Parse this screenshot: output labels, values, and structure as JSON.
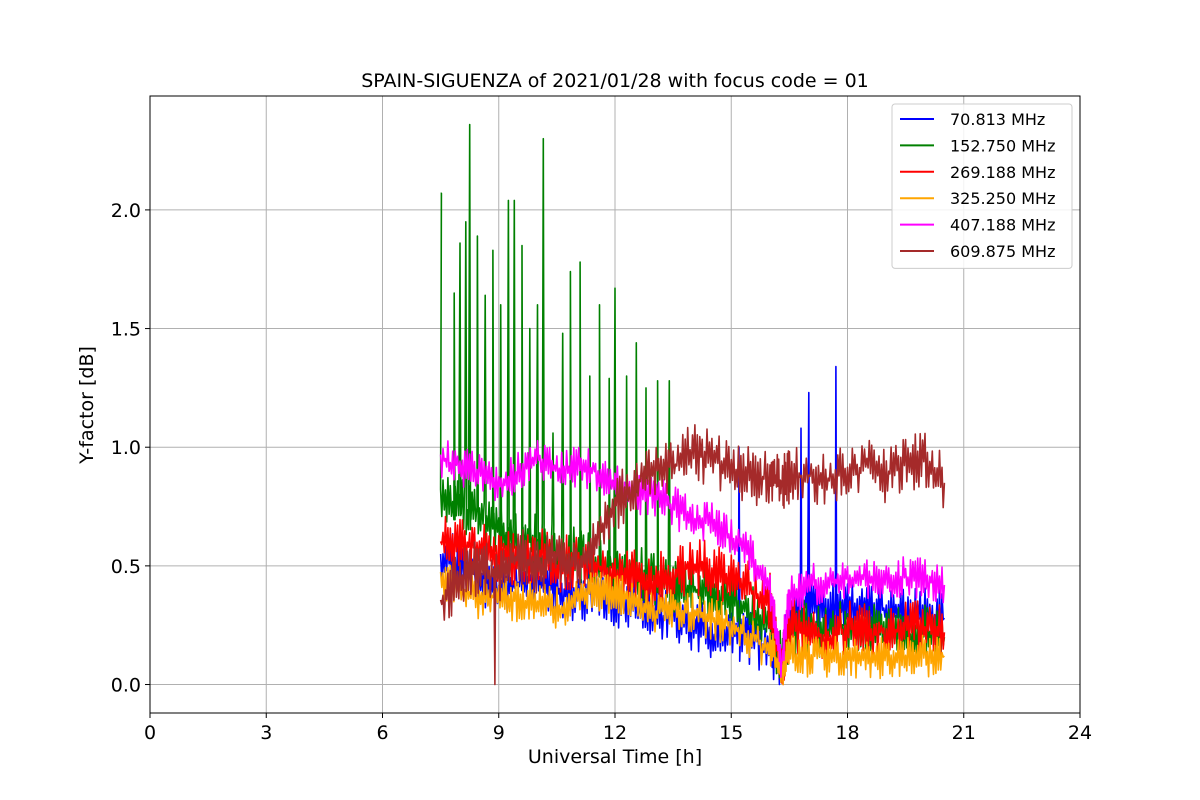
{
  "chart_data": {
    "type": "line",
    "title": "SPAIN-SIGUENZA of 2021/01/28 with focus code = 01",
    "xlabel": "Universal Time [h]",
    "ylabel": "Y-factor [dB]",
    "xlim": [
      0,
      24
    ],
    "ylim": [
      -0.12,
      2.48
    ],
    "xticks": [
      0,
      3,
      6,
      9,
      12,
      15,
      18,
      21,
      24
    ],
    "xtick_labels": [
      "0",
      "3",
      "6",
      "9",
      "12",
      "15",
      "18",
      "21",
      "24"
    ],
    "yticks": [
      0.0,
      0.5,
      1.0,
      1.5,
      2.0
    ],
    "ytick_labels": [
      "0.0",
      "0.5",
      "1.0",
      "1.5",
      "2.0"
    ],
    "grid": true,
    "legend_position": "top-right",
    "series": [
      {
        "name": " 70.813 MHz",
        "color": "#0000ff",
        "x": [
          7.5,
          8.0,
          8.5,
          9.0,
          9.5,
          10.0,
          10.5,
          11.0,
          11.5,
          12.0,
          12.5,
          13.0,
          13.5,
          14.0,
          14.5,
          15.0,
          15.5,
          16.0,
          16.3,
          16.5,
          17.0,
          17.5,
          18.0,
          18.5,
          19.0,
          19.5,
          20.0,
          20.5
        ],
        "y": [
          0.55,
          0.5,
          0.45,
          0.4,
          0.42,
          0.45,
          0.4,
          0.38,
          0.4,
          0.35,
          0.35,
          0.3,
          0.28,
          0.25,
          0.2,
          0.22,
          0.2,
          0.15,
          0.05,
          0.3,
          0.35,
          0.32,
          0.33,
          0.3,
          0.32,
          0.3,
          0.3,
          0.28
        ],
        "spikes": [
          {
            "x": 16.8,
            "y": 1.08
          },
          {
            "x": 17.7,
            "y": 1.34
          },
          {
            "x": 17.0,
            "y": 1.23
          },
          {
            "x": 15.2,
            "y": 1.0
          }
        ]
      },
      {
        "name": "152.750 MHz",
        "color": "#008000",
        "x": [
          7.5,
          8.0,
          8.5,
          9.0,
          9.5,
          10.0,
          10.5,
          11.0,
          11.5,
          12.0,
          12.5,
          13.0,
          13.5,
          14.0,
          14.5,
          15.0,
          15.5,
          16.0,
          16.3,
          16.5,
          17.0,
          17.5,
          18.0,
          18.5,
          19.0,
          19.5,
          20.0,
          20.5
        ],
        "y": [
          0.8,
          0.75,
          0.7,
          0.65,
          0.6,
          0.6,
          0.55,
          0.55,
          0.5,
          0.5,
          0.48,
          0.45,
          0.42,
          0.4,
          0.38,
          0.35,
          0.3,
          0.25,
          0.1,
          0.22,
          0.25,
          0.22,
          0.24,
          0.22,
          0.22,
          0.2,
          0.22,
          0.2
        ],
        "spikes": [
          {
            "x": 7.5,
            "y": 2.07
          },
          {
            "x": 7.85,
            "y": 1.65
          },
          {
            "x": 8.0,
            "y": 1.86
          },
          {
            "x": 8.15,
            "y": 1.95
          },
          {
            "x": 8.25,
            "y": 2.36
          },
          {
            "x": 8.45,
            "y": 1.89
          },
          {
            "x": 8.65,
            "y": 1.64
          },
          {
            "x": 8.85,
            "y": 1.83
          },
          {
            "x": 9.05,
            "y": 1.6
          },
          {
            "x": 9.25,
            "y": 2.04
          },
          {
            "x": 9.4,
            "y": 2.04
          },
          {
            "x": 9.6,
            "y": 1.85
          },
          {
            "x": 9.8,
            "y": 1.5
          },
          {
            "x": 10.0,
            "y": 1.6
          },
          {
            "x": 10.15,
            "y": 2.3
          },
          {
            "x": 10.4,
            "y": 1.06
          },
          {
            "x": 10.65,
            "y": 1.48
          },
          {
            "x": 10.85,
            "y": 1.74
          },
          {
            "x": 11.1,
            "y": 1.78
          },
          {
            "x": 11.35,
            "y": 1.3
          },
          {
            "x": 11.6,
            "y": 1.6
          },
          {
            "x": 11.85,
            "y": 1.29
          },
          {
            "x": 12.0,
            "y": 1.67
          },
          {
            "x": 12.3,
            "y": 1.3
          },
          {
            "x": 12.55,
            "y": 1.44
          },
          {
            "x": 12.8,
            "y": 1.25
          },
          {
            "x": 13.1,
            "y": 1.28
          },
          {
            "x": 13.4,
            "y": 1.28
          }
        ]
      },
      {
        "name": "269.188 MHz",
        "color": "#ff0000",
        "x": [
          7.5,
          8.0,
          8.5,
          9.0,
          9.5,
          10.0,
          10.5,
          11.0,
          11.5,
          12.0,
          12.5,
          13.0,
          13.5,
          14.0,
          14.5,
          15.0,
          15.5,
          16.0,
          16.3,
          16.5,
          17.0,
          17.5,
          18.0,
          18.5,
          19.0,
          19.5,
          20.0,
          20.5
        ],
        "y": [
          0.6,
          0.58,
          0.6,
          0.55,
          0.52,
          0.55,
          0.5,
          0.52,
          0.5,
          0.45,
          0.48,
          0.42,
          0.48,
          0.5,
          0.48,
          0.45,
          0.4,
          0.35,
          0.05,
          0.25,
          0.22,
          0.2,
          0.24,
          0.22,
          0.22,
          0.24,
          0.24,
          0.22
        ],
        "spikes": []
      },
      {
        "name": "325.250 MHz",
        "color": "#ffa500",
        "x": [
          7.5,
          8.0,
          8.5,
          9.0,
          9.5,
          10.0,
          10.5,
          11.0,
          11.5,
          12.0,
          12.5,
          13.0,
          13.5,
          14.0,
          14.5,
          15.0,
          15.5,
          16.0,
          16.3,
          16.5,
          17.0,
          17.5,
          18.0,
          18.5,
          19.0,
          19.5,
          20.0,
          20.5
        ],
        "y": [
          0.45,
          0.4,
          0.35,
          0.38,
          0.35,
          0.35,
          0.32,
          0.35,
          0.4,
          0.38,
          0.35,
          0.3,
          0.32,
          0.3,
          0.28,
          0.25,
          0.2,
          0.15,
          0.05,
          0.12,
          0.12,
          0.12,
          0.12,
          0.1,
          0.12,
          0.12,
          0.12,
          0.12
        ],
        "spikes": []
      },
      {
        "name": "407.188 MHz",
        "color": "#ff00ff",
        "x": [
          7.5,
          8.0,
          8.5,
          9.0,
          9.5,
          10.0,
          10.5,
          11.0,
          11.5,
          12.0,
          12.5,
          13.0,
          13.5,
          14.0,
          14.5,
          15.0,
          15.5,
          16.0,
          16.3,
          16.5,
          17.0,
          17.5,
          18.0,
          18.5,
          19.0,
          19.5,
          20.0,
          20.5
        ],
        "y": [
          0.95,
          0.92,
          0.88,
          0.85,
          0.9,
          0.95,
          0.9,
          0.92,
          0.9,
          0.85,
          0.8,
          0.8,
          0.75,
          0.7,
          0.68,
          0.62,
          0.55,
          0.4,
          0.1,
          0.38,
          0.42,
          0.42,
          0.45,
          0.45,
          0.45,
          0.45,
          0.45,
          0.42
        ],
        "spikes": []
      },
      {
        "name": "609.875 MHz",
        "color": "#a52a2a",
        "x": [
          7.5,
          8.0,
          8.5,
          9.0,
          9.5,
          10.0,
          10.5,
          11.0,
          11.5,
          12.0,
          12.5,
          13.0,
          13.5,
          14.0,
          14.5,
          15.0,
          15.5,
          16.0,
          16.3,
          16.5,
          17.0,
          17.5,
          18.0,
          18.5,
          19.0,
          19.5,
          20.0,
          20.5
        ],
        "y": [
          0.35,
          0.45,
          0.5,
          0.45,
          0.55,
          0.5,
          0.55,
          0.5,
          0.6,
          0.75,
          0.85,
          0.9,
          0.92,
          0.98,
          0.95,
          0.9,
          0.88,
          0.86,
          0.85,
          0.88,
          0.88,
          0.86,
          0.9,
          0.92,
          0.88,
          0.93,
          0.95,
          0.85
        ],
        "spikes": [
          {
            "x": 8.9,
            "y": 0.0
          }
        ]
      }
    ]
  }
}
